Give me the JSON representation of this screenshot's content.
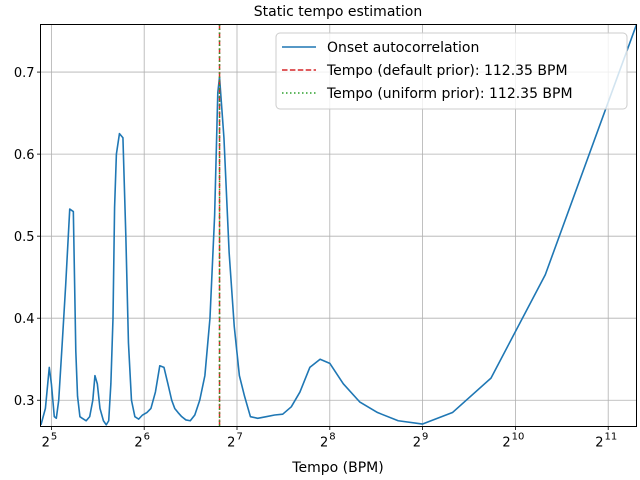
{
  "chart_data": {
    "type": "line",
    "title": "Static tempo estimation",
    "xlabel": "Tempo (BPM)",
    "ylabel": "",
    "xscale": "log2",
    "xlim": [
      29.5,
      2530
    ],
    "ylim": [
      0.268,
      0.758
    ],
    "grid": true,
    "legend_position": "top-right",
    "xticks": [
      {
        "base": "2",
        "exp": "5",
        "value": 32
      },
      {
        "base": "2",
        "exp": "6",
        "value": 64
      },
      {
        "base": "2",
        "exp": "7",
        "value": 128
      },
      {
        "base": "2",
        "exp": "8",
        "value": 256
      },
      {
        "base": "2",
        "exp": "9",
        "value": 512
      },
      {
        "base": "2",
        "exp": "10",
        "value": 1024
      },
      {
        "base": "2",
        "exp": "11",
        "value": 2048
      }
    ],
    "yticks": [
      {
        "label": "0.3",
        "value": 0.3
      },
      {
        "label": "0.4",
        "value": 0.4
      },
      {
        "label": "0.5",
        "value": 0.5
      },
      {
        "label": "0.6",
        "value": 0.6
      },
      {
        "label": "0.7",
        "value": 0.7
      }
    ],
    "series": [
      {
        "name": "Onset autocorrelation",
        "color": "#1f77b4",
        "style": "solid",
        "x": [
          29.6,
          30.6,
          31.5,
          32.0,
          32.7,
          33.2,
          33.8,
          34.7,
          35.6,
          36.7,
          37.7,
          38.4,
          38.9,
          39.6,
          40.3,
          41.5,
          42.6,
          43.6,
          44.3,
          45.1,
          46.0,
          47.2,
          48.2,
          49.1,
          49.9,
          50.7,
          51.3,
          52.0,
          53.2,
          54.6,
          55.8,
          56.9,
          58.2,
          59.7,
          61.4,
          63.2,
          65.3,
          67.3,
          69.6,
          71.9,
          74.2,
          76.4,
          78.6,
          80.4,
          82.4,
          84.7,
          87.4,
          90.3,
          93.4,
          96.9,
          100.7,
          104.6,
          108.3,
          110.9,
          112.35,
          116.1,
          120.7,
          125.4,
          130.3,
          135.4,
          141.5,
          149.4,
          159.2,
          169.6,
          180.1,
          192.0,
          204.8,
          220.5,
          238.1,
          256.0,
          283.2,
          320.0,
          365.7,
          426.7,
          512.0,
          640.0,
          853.3,
          1280.0,
          2530.0
        ],
        "values": [
          0.27,
          0.29,
          0.34,
          0.32,
          0.28,
          0.278,
          0.3,
          0.37,
          0.44,
          0.533,
          0.53,
          0.36,
          0.305,
          0.28,
          0.278,
          0.275,
          0.28,
          0.3,
          0.33,
          0.32,
          0.29,
          0.275,
          0.27,
          0.275,
          0.32,
          0.4,
          0.535,
          0.6,
          0.625,
          0.62,
          0.5,
          0.37,
          0.3,
          0.28,
          0.277,
          0.282,
          0.285,
          0.29,
          0.31,
          0.342,
          0.34,
          0.32,
          0.3,
          0.29,
          0.285,
          0.28,
          0.276,
          0.275,
          0.282,
          0.3,
          0.33,
          0.4,
          0.525,
          0.675,
          0.694,
          0.62,
          0.48,
          0.39,
          0.33,
          0.305,
          0.28,
          0.278,
          0.28,
          0.282,
          0.283,
          0.292,
          0.31,
          0.34,
          0.35,
          0.345,
          0.32,
          0.298,
          0.285,
          0.275,
          0.271,
          0.285,
          0.327,
          0.453,
          0.758
        ]
      },
      {
        "name": "Tempo (default prior): 112.35 BPM",
        "color": "#d62728",
        "style": "dashed",
        "kind": "vline",
        "x_value": 112.35
      },
      {
        "name": "Tempo (uniform prior): 112.35 BPM",
        "color": "#2ca02c",
        "style": "dotted",
        "kind": "vline",
        "x_value": 112.35
      }
    ]
  }
}
